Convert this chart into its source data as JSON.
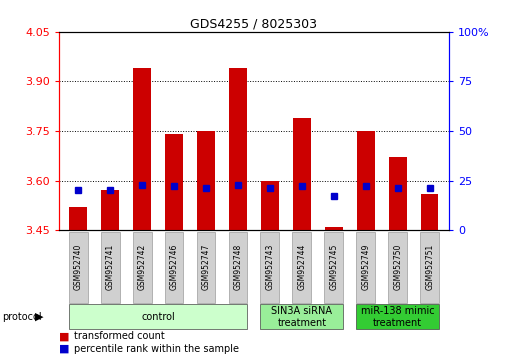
{
  "title": "GDS4255 / 8025303",
  "samples": [
    "GSM952740",
    "GSM952741",
    "GSM952742",
    "GSM952746",
    "GSM952747",
    "GSM952748",
    "GSM952743",
    "GSM952744",
    "GSM952745",
    "GSM952749",
    "GSM952750",
    "GSM952751"
  ],
  "red_values": [
    3.52,
    3.57,
    3.94,
    3.74,
    3.75,
    3.94,
    3.6,
    3.79,
    3.46,
    3.75,
    3.67,
    3.56
  ],
  "blue_values": [
    20,
    20,
    23,
    22,
    21,
    23,
    21,
    22,
    17,
    22,
    21,
    21
  ],
  "ymin": 3.45,
  "ymax": 4.05,
  "yticks_left": [
    3.45,
    3.6,
    3.75,
    3.9,
    4.05
  ],
  "yticks_right": [
    0,
    25,
    50,
    75,
    100
  ],
  "bar_color": "#cc0000",
  "blue_color": "#0000cc",
  "baseline": 3.45,
  "label_control": "control",
  "label_sin3a": "SIN3A siRNA\ntreatment",
  "label_mir138": "miR-138 mimic\ntreatment",
  "group_spans": [
    [
      0,
      5,
      "control",
      "#ccffcc"
    ],
    [
      6,
      8,
      "SIN3A siRNA\ntreatment",
      "#99ee99"
    ],
    [
      9,
      11,
      "miR-138 mimic\ntreatment",
      "#33cc33"
    ]
  ],
  "sample_box_color": "#d0d0d0",
  "legend_red_label": "transformed count",
  "legend_blue_label": "percentile rank within the sample"
}
